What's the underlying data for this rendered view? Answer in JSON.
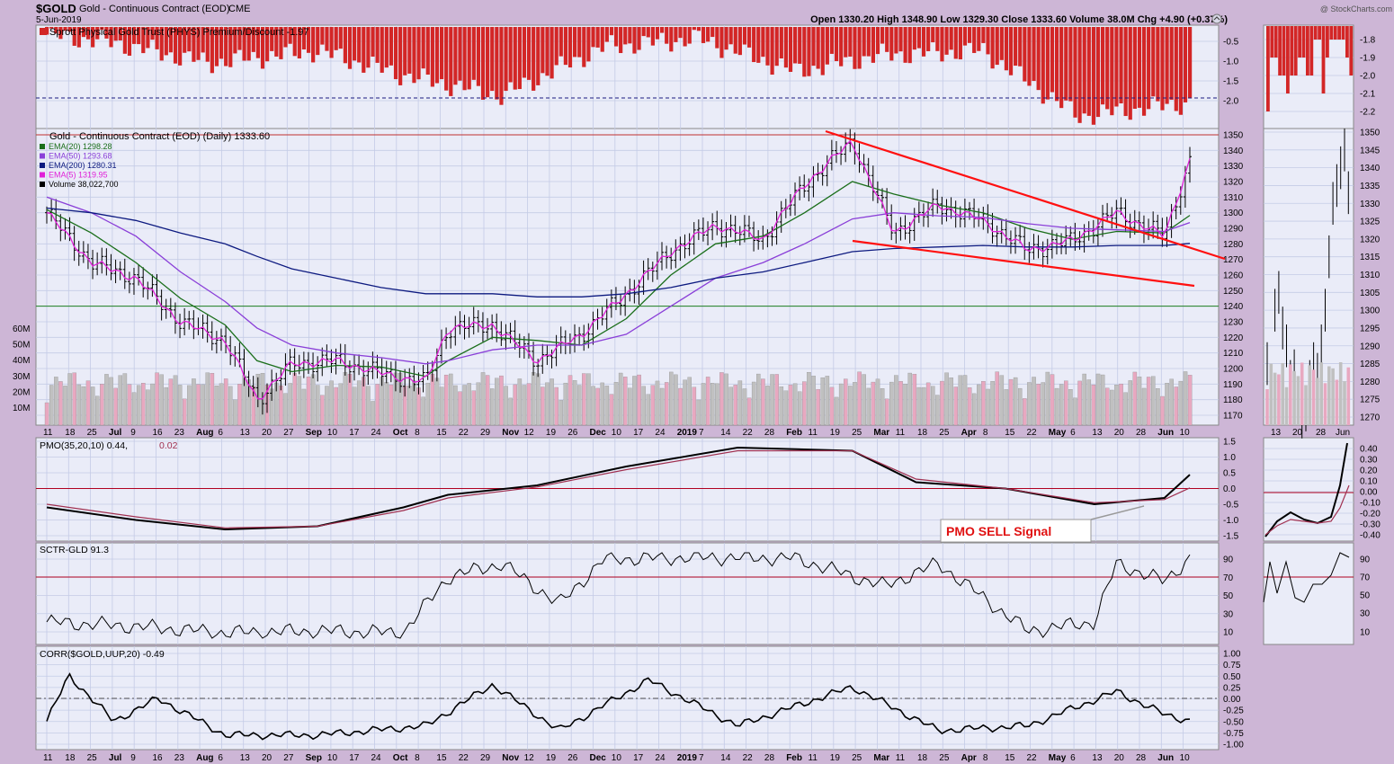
{
  "header": {
    "symbol": "$GOLD",
    "name": "Gold - Continuous Contract (EOD)",
    "exchange": "CME",
    "date": "5-Jun-2019",
    "ohlc": "Open 1330.20  High 1348.90  Low 1329.30  Close 1333.60  Volume 38.0M  Chg +4.90 (+0.37%)",
    "watermark": "@ StockCharts.com"
  },
  "colors": {
    "panel_bg": "#eaecf8",
    "frame_bg": "#cdb6d6",
    "grid": "#c4cbe6",
    "price_bar": "#000000",
    "ema20": "#1a6e1a",
    "ema50": "#8a3fd8",
    "ema200": "#0d1a80",
    "ema5": "#e020d8",
    "trendline": "#ff1010",
    "phys_bar": "#d32626",
    "vol_up": "#c0c0c0",
    "vol_down": "#e8a8c0",
    "pmo_line": "#000000",
    "pmo_signal": "#a03050",
    "ref_line": "#b00020"
  },
  "x_axis": {
    "labels": [
      "11",
      "18",
      "25",
      "Jul",
      "9",
      "16",
      "23",
      "Aug",
      "6",
      "13",
      "20",
      "27",
      "Sep",
      "10",
      "17",
      "24",
      "Oct",
      "8",
      "15",
      "22",
      "29",
      "Nov",
      "12",
      "19",
      "26",
      "Dec",
      "10",
      "17",
      "24",
      "2019",
      "7",
      "14",
      "22",
      "28",
      "Feb",
      "11",
      "19",
      "25",
      "Mar",
      "11",
      "18",
      "25",
      "Apr",
      "8",
      "15",
      "22",
      "May",
      "6",
      "13",
      "20",
      "28",
      "Jun",
      "10"
    ],
    "labels_small": [
      "13",
      "20",
      "28",
      "Jun"
    ]
  },
  "panels": {
    "phys": {
      "title": "Sprott Physical Gold Trust (PHYS) Premium/Discount -1.97",
      "y_ticks": [
        "-0.5",
        "-1.0",
        "-1.5",
        "-2.0"
      ],
      "y_ticks_small": [
        "-1.8",
        "-1.9",
        "-2.0",
        "-2.1",
        "-2.2"
      ]
    },
    "price": {
      "title": "Gold - Continuous Contract (EOD) (Daily) 1333.60",
      "legend": [
        {
          "label": "EMA(20) 1298.28",
          "color": "#1a6e1a"
        },
        {
          "label": "EMA(50) 1293.68",
          "color": "#8a3fd8"
        },
        {
          "label": "EMA(200) 1280.31",
          "color": "#0d1a80"
        },
        {
          "label": "EMA(5) 1319.95",
          "color": "#e020d8"
        },
        {
          "label": "Volume 38,022,700",
          "color": "#000000"
        }
      ],
      "y_ticks": [
        "1350",
        "1340",
        "1330",
        "1320",
        "1310",
        "1300",
        "1290",
        "1280",
        "1270",
        "1260",
        "1250",
        "1240",
        "1230",
        "1220",
        "1210",
        "1200",
        "1190",
        "1180",
        "1170"
      ],
      "y_ticks_small": [
        "1350",
        "1345",
        "1340",
        "1335",
        "1330",
        "1325",
        "1320",
        "1315",
        "1310",
        "1305",
        "1300",
        "1295",
        "1290",
        "1285",
        "1280",
        "1275",
        "1270"
      ],
      "vol_ticks": [
        "60M",
        "50M",
        "40M",
        "30M",
        "20M",
        "10M"
      ]
    },
    "pmo": {
      "title": "PMO(35,20,10) 0.44,",
      "title_signal": "0.02",
      "y_ticks": [
        "1.5",
        "1.0",
        "0.5",
        "0.0",
        "-0.5",
        "-1.0",
        "-1.5"
      ],
      "y_ticks_small": [
        "0.40",
        "0.30",
        "0.20",
        "0.10",
        "0.00",
        "-0.10",
        "-0.20",
        "-0.30",
        "-0.40"
      ],
      "annotation": "PMO SELL Signal"
    },
    "sctr": {
      "title": "SCTR-GLD 91.3",
      "y_ticks": [
        "90",
        "70",
        "50",
        "30",
        "10"
      ]
    },
    "corr": {
      "title": "CORR($GOLD,UUP,20) -0.49",
      "y_ticks": [
        "1.00",
        "0.75",
        "0.50",
        "0.25",
        "0.00",
        "-0.25",
        "-0.50",
        "-0.75",
        "-1.00"
      ]
    }
  },
  "chart_data": [
    {
      "type": "bar",
      "name": "PHYS Premium/Discount",
      "x": [
        "2018-06-11",
        "2018-07-02",
        "2018-08-01",
        "2018-09-04",
        "2018-10-01",
        "2018-11-01",
        "2018-12-03",
        "2019-01-02",
        "2019-02-01",
        "2019-03-01",
        "2019-04-01",
        "2019-05-01",
        "2019-06-05"
      ],
      "values": [
        -0.3,
        -0.5,
        -1.0,
        -0.7,
        -1.3,
        -1.8,
        -0.6,
        -0.4,
        -1.2,
        -0.8,
        -0.7,
        -2.3,
        -1.97
      ],
      "ylim": [
        -2.4,
        -0.2
      ]
    },
    {
      "type": "line",
      "name": "Gold Daily",
      "x": [
        "2018-06-11",
        "2018-06-25",
        "2018-07-09",
        "2018-07-23",
        "2018-08-06",
        "2018-08-16",
        "2018-08-27",
        "2018-09-10",
        "2018-09-24",
        "2018-10-08",
        "2018-10-15",
        "2018-10-29",
        "2018-11-12",
        "2018-11-26",
        "2018-12-10",
        "2018-12-24",
        "2019-01-07",
        "2019-01-22",
        "2019-02-04",
        "2019-02-19",
        "2019-03-04",
        "2019-03-18",
        "2019-04-01",
        "2019-04-15",
        "2019-04-29",
        "2019-05-13",
        "2019-05-28",
        "2019-06-05"
      ],
      "series": [
        {
          "name": "Gold",
          "values": [
            1300,
            1268,
            1258,
            1230,
            1218,
            1180,
            1203,
            1205,
            1197,
            1191,
            1226,
            1228,
            1205,
            1222,
            1248,
            1275,
            1292,
            1283,
            1318,
            1346,
            1287,
            1305,
            1295,
            1276,
            1282,
            1300,
            1285,
            1333.6
          ]
        },
        {
          "name": "EMA(20)",
          "values": [
            1302,
            1287,
            1268,
            1245,
            1228,
            1205,
            1198,
            1202,
            1201,
            1195,
            1205,
            1220,
            1218,
            1215,
            1232,
            1260,
            1280,
            1285,
            1300,
            1320,
            1312,
            1305,
            1300,
            1290,
            1283,
            1288,
            1287,
            1298.28
          ]
        },
        {
          "name": "EMA(50)",
          "values": [
            1310,
            1300,
            1285,
            1262,
            1243,
            1226,
            1215,
            1210,
            1207,
            1203,
            1205,
            1212,
            1215,
            1215,
            1222,
            1240,
            1258,
            1268,
            1280,
            1296,
            1300,
            1298,
            1297,
            1293,
            1290,
            1289,
            1288,
            1293.68
          ]
        },
        {
          "name": "EMA(200)",
          "values": [
            1303,
            1300,
            1295,
            1287,
            1280,
            1272,
            1264,
            1258,
            1252,
            1248,
            1248,
            1248,
            1246,
            1246,
            1248,
            1252,
            1258,
            1262,
            1268,
            1275,
            1277,
            1278,
            1279,
            1278,
            1278,
            1279,
            1279,
            1280.31
          ]
        }
      ],
      "ylim": [
        1165,
        1352
      ]
    },
    {
      "type": "line",
      "name": "PMO",
      "x": [
        "2018-06-11",
        "2018-07-09",
        "2018-08-06",
        "2018-09-04",
        "2018-10-01",
        "2018-10-15",
        "2018-11-12",
        "2018-12-10",
        "2019-01-14",
        "2019-02-19",
        "2019-03-11",
        "2019-04-08",
        "2019-05-06",
        "2019-05-28",
        "2019-06-05"
      ],
      "series": [
        {
          "name": "PMO",
          "values": [
            -0.6,
            -1.0,
            -1.3,
            -1.2,
            -0.6,
            -0.2,
            0.1,
            0.7,
            1.3,
            1.2,
            0.2,
            0.0,
            -0.5,
            -0.3,
            0.44
          ]
        },
        {
          "name": "Signal",
          "values": [
            -0.5,
            -0.9,
            -1.25,
            -1.2,
            -0.7,
            -0.3,
            0.05,
            0.6,
            1.2,
            1.2,
            0.3,
            0.0,
            -0.45,
            -0.35,
            0.02
          ]
        }
      ],
      "ylim": [
        -1.7,
        1.6
      ]
    },
    {
      "type": "line",
      "name": "SCTR-GLD",
      "x": [
        "2018-06-11",
        "2018-07-09",
        "2018-08-06",
        "2018-09-04",
        "2018-10-01",
        "2018-10-15",
        "2018-11-01",
        "2018-11-19",
        "2018-12-03",
        "2019-01-02",
        "2019-02-01",
        "2019-03-01",
        "2019-03-18",
        "2019-04-15",
        "2019-05-06",
        "2019-05-13",
        "2019-05-28",
        "2019-06-05"
      ],
      "values": [
        20,
        15,
        8,
        10,
        8,
        70,
        85,
        40,
        90,
        92,
        91,
        60,
        85,
        10,
        20,
        85,
        65,
        91.3
      ],
      "ylim": [
        0,
        100
      ]
    },
    {
      "type": "line",
      "name": "CORR($GOLD,UUP,20)",
      "x": [
        "2018-06-11",
        "2018-06-18",
        "2018-07-02",
        "2018-07-16",
        "2018-08-06",
        "2018-09-04",
        "2018-10-08",
        "2018-10-29",
        "2018-11-19",
        "2018-12-17",
        "2019-01-14",
        "2019-02-19",
        "2019-03-18",
        "2019-04-15",
        "2019-05-13",
        "2019-05-28",
        "2019-06-05"
      ],
      "values": [
        -0.5,
        0.5,
        -0.5,
        0.0,
        -0.8,
        -0.8,
        -0.6,
        0.3,
        -0.7,
        0.4,
        -0.6,
        0.25,
        -0.7,
        -0.6,
        0.15,
        -0.35,
        -0.49
      ],
      "ylim": [
        -1.0,
        1.0
      ]
    }
  ]
}
